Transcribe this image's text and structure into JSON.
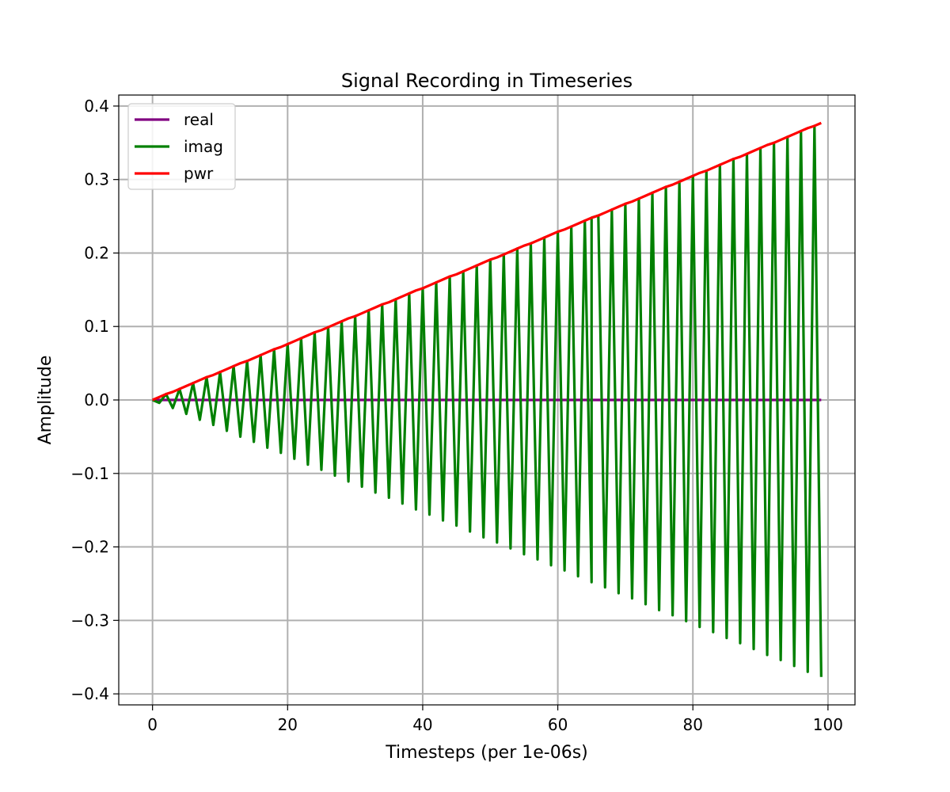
{
  "chart_data": {
    "type": "line",
    "title": "Signal Recording in Timeseries",
    "xlabel": "Timesteps (per 1e-06s)",
    "ylabel": "Amplitude",
    "xlim": [
      -5,
      104
    ],
    "ylim": [
      -0.415,
      0.415
    ],
    "xticks": [
      0,
      20,
      40,
      60,
      80,
      100
    ],
    "xtick_labels": [
      "0",
      "20",
      "40",
      "60",
      "80",
      "100"
    ],
    "yticks": [
      -0.4,
      -0.3,
      -0.2,
      -0.1,
      0.0,
      0.1,
      0.2,
      0.3,
      0.4
    ],
    "ytick_labels": [
      "−0.4",
      "−0.3",
      "−0.2",
      "−0.1",
      "0.0",
      "0.1",
      "0.2",
      "0.3",
      "0.4"
    ],
    "grid": true,
    "legend": "upper-left",
    "x": [
      0,
      1,
      2,
      3,
      4,
      5,
      6,
      7,
      8,
      9,
      10,
      11,
      12,
      13,
      14,
      15,
      16,
      17,
      18,
      19,
      20,
      21,
      22,
      23,
      24,
      25,
      26,
      27,
      28,
      29,
      30,
      31,
      32,
      33,
      34,
      35,
      36,
      37,
      38,
      39,
      40,
      41,
      42,
      43,
      44,
      45,
      46,
      47,
      48,
      49,
      50,
      51,
      52,
      53,
      54,
      55,
      56,
      57,
      58,
      59,
      60,
      61,
      62,
      63,
      64,
      65,
      65,
      66,
      67,
      68,
      69,
      70,
      71,
      72,
      73,
      74,
      75,
      76,
      77,
      78,
      79,
      80,
      81,
      82,
      83,
      84,
      85,
      86,
      87,
      88,
      89,
      90,
      91,
      92,
      93,
      94,
      95,
      96,
      97,
      98,
      99
    ],
    "series": [
      {
        "name": "real",
        "color": "#800080",
        "values": [
          0.0,
          0.0,
          0.0,
          0.0,
          0.0,
          0.0,
          0.0,
          0.0,
          0.0,
          0.0,
          0.0,
          0.0,
          0.0,
          0.0,
          0.0,
          0.0,
          0.0,
          0.0,
          0.0,
          0.0,
          0.0,
          0.0,
          0.0,
          0.0,
          0.0,
          0.0,
          0.0,
          0.0,
          0.0,
          0.0,
          0.0,
          0.0,
          0.0,
          0.0,
          0.0,
          0.0,
          0.0,
          0.0,
          0.0,
          0.0,
          0.0,
          0.0,
          0.0,
          0.0,
          0.0,
          0.0,
          0.0,
          0.0,
          0.0,
          0.0,
          0.0,
          0.0,
          0.0,
          0.0,
          0.0,
          0.0,
          0.0,
          0.0,
          0.0,
          0.0,
          0.0,
          0.0,
          0.0,
          0.0,
          0.0,
          0.0,
          0.0,
          0.0,
          0.0,
          0.0,
          0.0,
          0.0,
          0.0,
          0.0,
          0.0,
          0.0,
          0.0,
          0.0,
          0.0,
          0.0,
          0.0,
          0.0,
          0.0,
          0.0,
          0.0,
          0.0,
          0.0,
          0.0,
          0.0,
          0.0,
          0.0,
          0.0,
          0.0,
          0.0,
          0.0,
          0.0,
          0.0,
          0.0,
          0.0,
          0.0,
          0.0
        ]
      },
      {
        "name": "imag",
        "color": "#008000",
        "values": [
          0.0,
          -0.004,
          0.008,
          -0.011,
          0.015,
          -0.019,
          0.023,
          -0.027,
          0.031,
          -0.034,
          0.038,
          -0.042,
          0.046,
          -0.05,
          0.053,
          -0.057,
          0.061,
          -0.065,
          0.069,
          -0.072,
          0.076,
          -0.08,
          0.084,
          -0.088,
          0.092,
          -0.095,
          0.099,
          -0.103,
          0.107,
          -0.111,
          0.114,
          -0.118,
          0.122,
          -0.126,
          0.13,
          -0.133,
          0.137,
          -0.141,
          0.145,
          -0.149,
          0.152,
          -0.156,
          0.16,
          -0.164,
          0.168,
          -0.171,
          0.175,
          -0.179,
          0.183,
          -0.187,
          0.191,
          -0.194,
          0.198,
          -0.202,
          0.206,
          -0.21,
          0.213,
          -0.217,
          0.221,
          -0.225,
          0.229,
          -0.232,
          0.236,
          -0.24,
          0.244,
          -0.248,
          0.248,
          0.251,
          -0.255,
          0.259,
          -0.263,
          0.267,
          -0.27,
          0.274,
          -0.278,
          0.282,
          -0.286,
          0.29,
          -0.293,
          0.297,
          -0.301,
          0.305,
          -0.309,
          0.312,
          -0.316,
          0.32,
          -0.324,
          0.328,
          -0.331,
          0.335,
          -0.339,
          0.343,
          -0.347,
          0.35,
          -0.354,
          0.358,
          -0.362,
          0.366,
          -0.37,
          0.373,
          -0.377
        ]
      },
      {
        "name": "pwr",
        "color": "#ff0000",
        "values": [
          0.0,
          0.004,
          0.008,
          0.011,
          0.015,
          0.019,
          0.023,
          0.027,
          0.031,
          0.034,
          0.038,
          0.042,
          0.046,
          0.05,
          0.053,
          0.057,
          0.061,
          0.065,
          0.069,
          0.072,
          0.076,
          0.08,
          0.084,
          0.088,
          0.092,
          0.095,
          0.099,
          0.103,
          0.107,
          0.111,
          0.114,
          0.118,
          0.122,
          0.126,
          0.13,
          0.133,
          0.137,
          0.141,
          0.145,
          0.149,
          0.152,
          0.156,
          0.16,
          0.164,
          0.168,
          0.171,
          0.175,
          0.179,
          0.183,
          0.187,
          0.191,
          0.194,
          0.198,
          0.202,
          0.206,
          0.21,
          0.213,
          0.217,
          0.221,
          0.225,
          0.229,
          0.232,
          0.236,
          0.24,
          0.244,
          0.248,
          0.248,
          0.251,
          0.255,
          0.259,
          0.263,
          0.267,
          0.27,
          0.274,
          0.278,
          0.282,
          0.286,
          0.29,
          0.293,
          0.297,
          0.301,
          0.305,
          0.309,
          0.312,
          0.316,
          0.32,
          0.324,
          0.328,
          0.331,
          0.335,
          0.339,
          0.343,
          0.347,
          0.35,
          0.354,
          0.358,
          0.362,
          0.366,
          0.37,
          0.373,
          0.377
        ]
      }
    ]
  }
}
